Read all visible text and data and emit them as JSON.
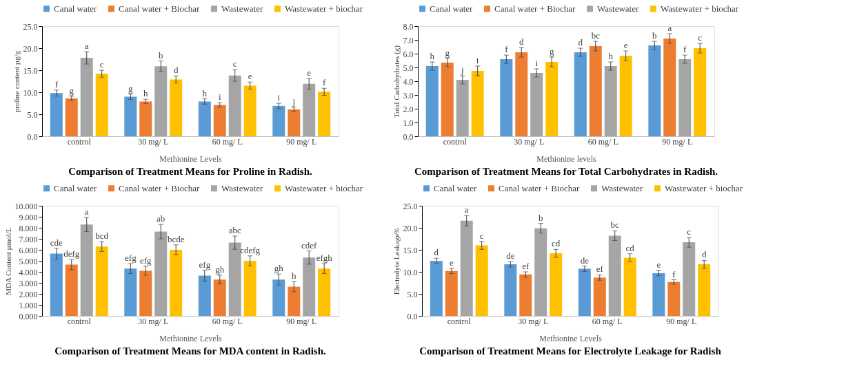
{
  "chart_data": [
    {
      "type": "bar",
      "title": "Comparison of Treatment Means for Proline in Radish.",
      "xlabel": "Methionine Levels",
      "ylabel": "proline content µg/g",
      "categories": [
        "control",
        "30 mg/ L",
        "60 mg/ L",
        "90 mg/ L"
      ],
      "ylim": [
        0,
        25
      ],
      "yticks": [
        {
          "value": 0,
          "label": "0.0"
        },
        {
          "value": 5,
          "label": "5.0"
        },
        {
          "value": 10,
          "label": "10.0"
        },
        {
          "value": 15,
          "label": "15.0"
        },
        {
          "value": 20,
          "label": "20.0"
        },
        {
          "value": 25,
          "label": "25.0"
        }
      ],
      "grid": false,
      "legend": "top",
      "series": [
        {
          "name": "Canal water",
          "color": "#5b9bd5",
          "values": [
            9.8,
            9.0,
            7.9,
            6.9
          ],
          "errors": [
            0.7,
            0.6,
            0.6,
            0.6
          ],
          "value_labels": [
            "f",
            "g",
            "h",
            "i"
          ]
        },
        {
          "name": "Canal water + Biochar",
          "color": "#ed7d31",
          "values": [
            8.6,
            7.9,
            7.1,
            6.1
          ],
          "errors": [
            0.5,
            0.5,
            0.5,
            0.5
          ],
          "value_labels": [
            "g",
            "h",
            "i",
            "j"
          ]
        },
        {
          "name": "Wastewater",
          "color": "#a5a5a5",
          "values": [
            17.8,
            15.9,
            13.8,
            11.9
          ],
          "errors": [
            1.4,
            1.2,
            1.3,
            1.2
          ],
          "value_labels": [
            "a",
            "b",
            "c",
            "e"
          ]
        },
        {
          "name": "Wastewater + biochar",
          "color": "#ffc000",
          "values": [
            14.2,
            12.9,
            11.5,
            10.1
          ],
          "errors": [
            0.8,
            0.8,
            0.8,
            0.8
          ],
          "value_labels": [
            "c",
            "d",
            "e",
            "f"
          ]
        }
      ]
    },
    {
      "type": "bar",
      "title": "Comparison of Treatment Means for Total Carbohydrates in Radish.",
      "xlabel": "Methionine levels",
      "ylabel": "Total Carbohydrates (g)",
      "categories": [
        "control",
        "30 mg/ L",
        "60 mg/ L",
        "90 mg/ L"
      ],
      "ylim": [
        0,
        8
      ],
      "yticks": [
        {
          "value": 0,
          "label": "0.0"
        },
        {
          "value": 1,
          "label": "1.0"
        },
        {
          "value": 2,
          "label": "2.0"
        },
        {
          "value": 3,
          "label": "3.0"
        },
        {
          "value": 4,
          "label": "4.0"
        },
        {
          "value": 5,
          "label": "5.0"
        },
        {
          "value": 6,
          "label": "6.0"
        },
        {
          "value": 7,
          "label": "7.0"
        },
        {
          "value": 8,
          "label": "8.0"
        }
      ],
      "grid": false,
      "legend": "top",
      "series": [
        {
          "name": "Canal water",
          "color": "#5b9bd5",
          "values": [
            5.1,
            5.6,
            6.1,
            6.6
          ],
          "errors": [
            0.3,
            0.3,
            0.3,
            0.3
          ],
          "value_labels": [
            "h",
            "f",
            "d",
            "b"
          ]
        },
        {
          "name": "Canal water + Biochar",
          "color": "#ed7d31",
          "values": [
            5.35,
            6.1,
            6.55,
            7.1
          ],
          "errors": [
            0.3,
            0.35,
            0.35,
            0.35
          ],
          "value_labels": [
            "g",
            "d",
            "bc",
            "a"
          ]
        },
        {
          "name": "Wastewater",
          "color": "#a5a5a5",
          "values": [
            4.1,
            4.6,
            5.1,
            5.6
          ],
          "errors": [
            0.3,
            0.3,
            0.3,
            0.3
          ],
          "value_labels": [
            "j",
            "i",
            "h",
            "f"
          ]
        },
        {
          "name": "Wastewater + biochar",
          "color": "#ffc000",
          "values": [
            4.75,
            5.4,
            5.85,
            6.4
          ],
          "errors": [
            0.35,
            0.35,
            0.35,
            0.35
          ],
          "value_labels": [
            "i",
            "g",
            "e",
            "c"
          ]
        }
      ]
    },
    {
      "type": "bar",
      "title": "Comparison of Treatment Means for MDA content in Radish.",
      "xlabel": "Methionine Levels",
      "ylabel": "MDA Content µmol/L",
      "categories": [
        "control",
        "30 mg/ L",
        "60 mg/ L",
        "90 mg/ L"
      ],
      "ylim": [
        0,
        10
      ],
      "yticks": [
        {
          "value": 0,
          "label": "0.000"
        },
        {
          "value": 1,
          "label": "1.000"
        },
        {
          "value": 2,
          "label": "2.000"
        },
        {
          "value": 3,
          "label": "3.000"
        },
        {
          "value": 4,
          "label": "4.000"
        },
        {
          "value": 5,
          "label": "5.000"
        },
        {
          "value": 6,
          "label": "6.000"
        },
        {
          "value": 7,
          "label": "7.000"
        },
        {
          "value": 8,
          "label": "8.000"
        },
        {
          "value": 9,
          "label": "9.000"
        },
        {
          "value": 10,
          "label": "10.000"
        }
      ],
      "grid": false,
      "legend": "top",
      "series": [
        {
          "name": "Canal water",
          "color": "#5b9bd5",
          "values": [
            5.65,
            4.3,
            3.65,
            3.3
          ],
          "errors": [
            0.5,
            0.45,
            0.5,
            0.5
          ],
          "value_labels": [
            "cde",
            "efg",
            "efg",
            "gh"
          ]
        },
        {
          "name": "Canal water + Biochar",
          "color": "#ed7d31",
          "values": [
            4.65,
            4.1,
            3.3,
            2.65
          ],
          "errors": [
            0.45,
            0.4,
            0.4,
            0.45
          ],
          "value_labels": [
            "defg",
            "efg",
            "gh",
            "h"
          ]
        },
        {
          "name": "Wastewater",
          "color": "#a5a5a5",
          "values": [
            8.3,
            7.65,
            6.65,
            5.3
          ],
          "errors": [
            0.65,
            0.65,
            0.6,
            0.6
          ],
          "value_labels": [
            "a",
            "ab",
            "abc",
            "cdef"
          ]
        },
        {
          "name": "Wastewater + biochar",
          "color": "#ffc000",
          "values": [
            6.3,
            6.0,
            5.0,
            4.3
          ],
          "errors": [
            0.45,
            0.45,
            0.45,
            0.45
          ],
          "value_labels": [
            "bcd",
            "bcde",
            "cdefg",
            "efgh"
          ]
        }
      ]
    },
    {
      "type": "bar",
      "title": "Comparison of Treatment Means for Electrolyte Leakage for Radish",
      "xlabel": "Methionine Levels",
      "ylabel": "Electrolyte Leakage%",
      "categories": [
        "control",
        "30 mg/ L",
        "60 mg/ L",
        "90 mg/ L"
      ],
      "ylim": [
        0,
        25
      ],
      "yticks": [
        {
          "value": 0,
          "label": "0.0"
        },
        {
          "value": 5,
          "label": "5.0"
        },
        {
          "value": 10,
          "label": "10.0"
        },
        {
          "value": 15,
          "label": "15.0"
        },
        {
          "value": 20,
          "label": "20.0"
        },
        {
          "value": 25,
          "label": "25.0"
        }
      ],
      "grid": false,
      "legend": "top",
      "series": [
        {
          "name": "Canal water",
          "color": "#5b9bd5",
          "values": [
            12.5,
            11.7,
            10.7,
            9.7
          ],
          "errors": [
            0.6,
            0.6,
            0.6,
            0.6
          ],
          "value_labels": [
            "d",
            "de",
            "de",
            "e"
          ]
        },
        {
          "name": "Canal water + Biochar",
          "color": "#ed7d31",
          "values": [
            10.2,
            9.4,
            8.7,
            7.7
          ],
          "errors": [
            0.6,
            0.6,
            0.6,
            0.5
          ],
          "value_labels": [
            "e",
            "ef",
            "ef",
            "f"
          ]
        },
        {
          "name": "Wastewater",
          "color": "#a5a5a5",
          "values": [
            21.6,
            19.9,
            18.2,
            16.7
          ],
          "errors": [
            1.2,
            1.1,
            1.1,
            1.1
          ],
          "value_labels": [
            "a",
            "b",
            "bc",
            "c"
          ]
        },
        {
          "name": "Wastewater + biochar",
          "color": "#ffc000",
          "values": [
            16.0,
            14.2,
            13.2,
            11.7
          ],
          "errors": [
            0.9,
            0.9,
            0.9,
            0.9
          ],
          "value_labels": [
            "c",
            "cd",
            "cd",
            "d"
          ]
        }
      ]
    }
  ]
}
